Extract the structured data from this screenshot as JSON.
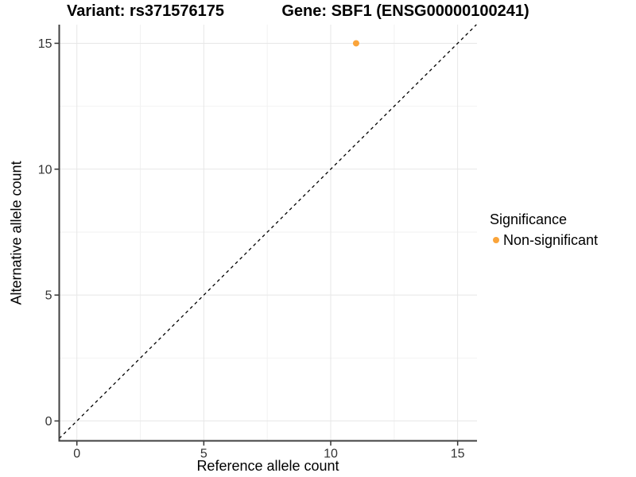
{
  "chart_data": {
    "type": "scatter",
    "titles": {
      "left": "Variant: rs371576175",
      "right": "Gene: SBF1 (ENSG00000100241)"
    },
    "xlabel": "Reference allele count",
    "ylabel": "Alternative allele count",
    "xlim": [
      -0.75,
      15.75
    ],
    "ylim": [
      -0.75,
      15.75
    ],
    "x_ticks": [
      0,
      5,
      10,
      15
    ],
    "y_ticks": [
      0,
      5,
      10,
      15
    ],
    "x_minor_ticks": [
      2.5,
      7.5,
      12.5
    ],
    "y_minor_ticks": [
      2.5,
      7.5,
      12.5
    ],
    "grid": "major+minor",
    "legend": {
      "title": "Significance",
      "position": "right",
      "entries": [
        {
          "label": "Non-significant",
          "color": "#FAA43A"
        }
      ]
    },
    "series": [
      {
        "name": "Non-significant",
        "color": "#FAA43A",
        "marker": "circle",
        "points": [
          {
            "x": 11,
            "y": 15
          }
        ]
      }
    ],
    "reference_line": {
      "equation": "y = x",
      "style": "dashed",
      "color": "#000000"
    }
  },
  "colors": {
    "background": "#FFFFFF",
    "grid_major": "#E7E7E7",
    "grid_minor": "#F2F2F2",
    "axis_line": "#404040",
    "tick_mark": "#333333",
    "tick_label": "#333333",
    "point": "#FAA43A",
    "text": "#000000"
  }
}
